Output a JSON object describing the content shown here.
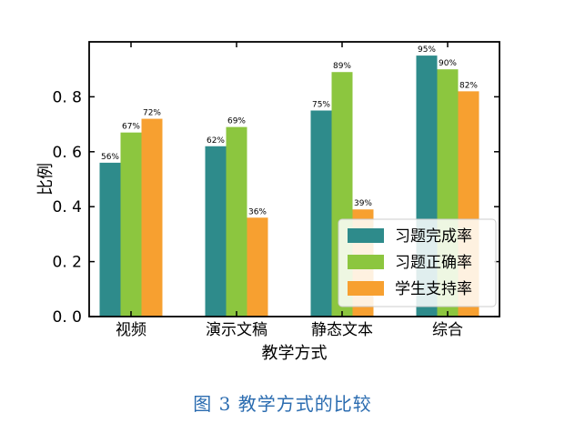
{
  "caption": "图 3 教学方式的比较",
  "chart_data": {
    "type": "bar",
    "xlabel": "教学方式",
    "ylabel": "比例",
    "ylim": [
      0,
      1.0
    ],
    "yticks": [
      0.0,
      0.2,
      0.4,
      0.6,
      0.8
    ],
    "ytick_labels": [
      "0. 0",
      "0. 2",
      "0. 4",
      "0. 6",
      "0. 8"
    ],
    "categories": [
      "视频",
      "演示文稿",
      "静态文本",
      "综合"
    ],
    "series": [
      {
        "name": "习题完成率",
        "color": "#2e8b8b",
        "values": [
          0.56,
          0.62,
          0.75,
          0.95
        ],
        "labels": [
          "56%",
          "62%",
          "75%",
          "95%"
        ]
      },
      {
        "name": "习题正确率",
        "color": "#8cc63f",
        "values": [
          0.67,
          0.69,
          0.89,
          0.9
        ],
        "labels": [
          "67%",
          "69%",
          "89%",
          "90%"
        ]
      },
      {
        "name": "学生支持率",
        "color": "#f7a030",
        "values": [
          0.72,
          0.36,
          0.39,
          0.82
        ],
        "labels": [
          "72%",
          "36%",
          "39%",
          "82%"
        ]
      }
    ],
    "legend_position": "lower-right",
    "grid": false
  }
}
